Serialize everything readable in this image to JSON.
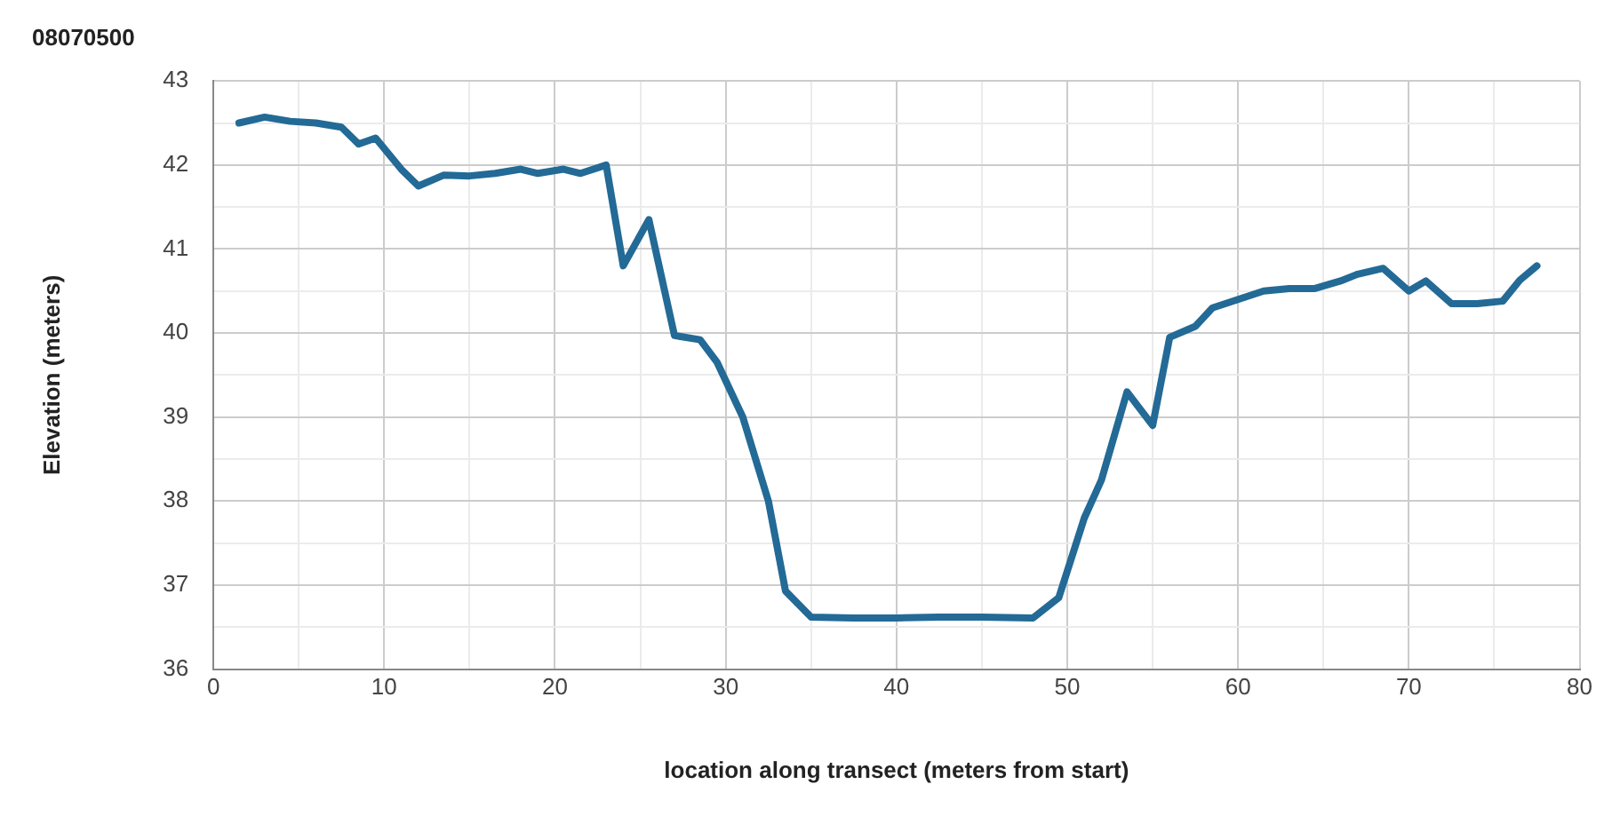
{
  "chart_data": {
    "type": "line",
    "title": "08070500",
    "xlabel": "location along transect (meters from start)",
    "ylabel": "Elevation (meters)",
    "x": [
      1.5,
      3,
      4.5,
      6,
      7.5,
      8.5,
      9.5,
      11,
      12,
      13.5,
      15,
      16.5,
      18,
      19,
      20.5,
      21.5,
      23,
      24,
      25.5,
      27,
      28.5,
      29.5,
      31,
      32.5,
      33.5,
      35,
      37.5,
      40,
      42.5,
      45,
      48,
      49.5,
      51,
      52,
      53.5,
      55,
      56,
      57.5,
      58.5,
      60,
      61.5,
      63,
      64.5,
      66,
      67,
      68.5,
      70,
      71,
      72.5,
      74,
      75.5,
      76.5,
      77.5
    ],
    "series": [
      {
        "color": "#236a96",
        "values": [
          42.5,
          42.57,
          42.52,
          42.5,
          42.45,
          42.25,
          42.32,
          41.95,
          41.75,
          41.88,
          41.87,
          41.9,
          41.95,
          41.9,
          41.95,
          41.9,
          42.0,
          40.8,
          41.35,
          39.97,
          39.92,
          39.65,
          39.0,
          38.0,
          36.93,
          36.62,
          36.61,
          36.61,
          36.62,
          36.62,
          36.61,
          36.85,
          37.8,
          38.25,
          39.3,
          38.9,
          39.95,
          40.08,
          40.3,
          40.4,
          40.5,
          40.53,
          40.53,
          40.62,
          40.7,
          40.77,
          40.5,
          40.62,
          40.35,
          40.35,
          40.38,
          40.63,
          40.8
        ]
      }
    ],
    "xlim": [
      0,
      80
    ],
    "xticks": [
      0,
      10,
      20,
      30,
      40,
      50,
      60,
      70,
      80
    ],
    "ylim": [
      36,
      43
    ],
    "yticks": [
      36,
      37,
      38,
      39,
      40,
      41,
      42,
      43
    ],
    "grid": true,
    "legend": false,
    "marker": "none",
    "line_style": "solid"
  }
}
